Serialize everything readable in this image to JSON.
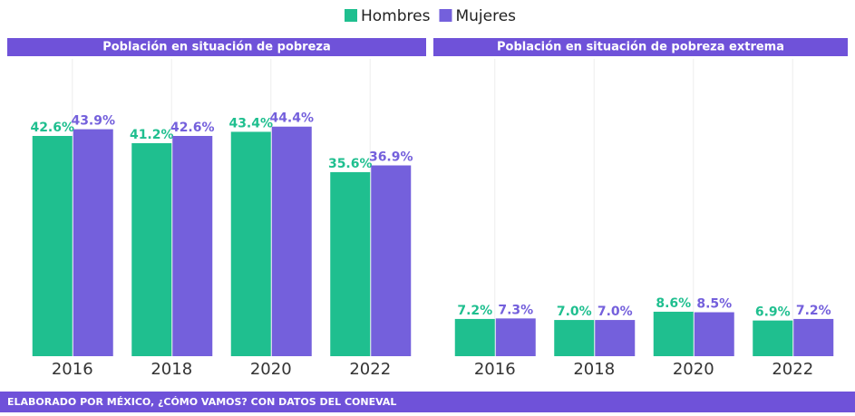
{
  "chart_data": [
    {
      "type": "bar",
      "title": "Población en situación de pobreza",
      "categories": [
        "2016",
        "2018",
        "2020",
        "2022"
      ],
      "series": [
        {
          "name": "Hombres",
          "color": "#1fbf8f",
          "values": [
            42.6,
            41.2,
            43.4,
            35.6
          ],
          "value_labels": [
            "42.6%",
            "41.2%",
            "43.4%",
            "35.6%"
          ]
        },
        {
          "name": "Mujeres",
          "color": "#7460dc",
          "values": [
            43.9,
            42.6,
            44.4,
            36.9
          ],
          "value_labels": [
            "43.9%",
            "42.6%",
            "44.4%",
            "36.9%"
          ]
        }
      ],
      "ylim": [
        0,
        57.5
      ]
    },
    {
      "type": "bar",
      "title": "Población en situación de pobreza extrema",
      "categories": [
        "2016",
        "2018",
        "2020",
        "2022"
      ],
      "series": [
        {
          "color": "#1fbf8f",
          "values": [
            7.2,
            7.0,
            8.6,
            6.9
          ],
          "value_labels": [
            "7.2%",
            "7.0%",
            "8.6%",
            "6.9%"
          ]
        },
        {
          "color": "#7460dc",
          "values": [
            7.3,
            7.0,
            8.5,
            7.2
          ],
          "value_labels": [
            "7.3%",
            "7.0%",
            "8.5%",
            "7.2%"
          ]
        }
      ],
      "ylim": [
        0,
        57.5
      ]
    }
  ],
  "footer": "ELABORADO POR MÉXICO, ¿CÓMO VAMOS? CON DATOS DEL CONEVAL"
}
